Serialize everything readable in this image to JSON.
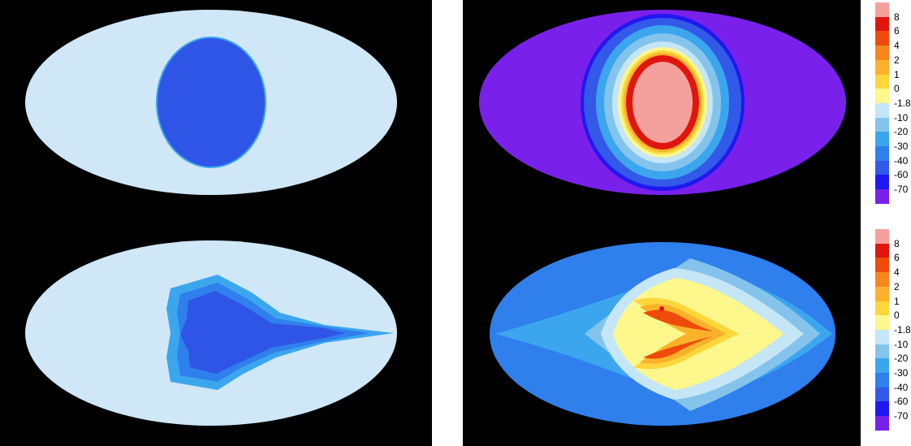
{
  "chart_data": {
    "type": "heatmap",
    "projection": "elliptical (Mollweide-like) sky maps",
    "panels": [
      {
        "position": "top-left",
        "levels_shown": [
          "-1.8",
          "-60"
        ],
        "shape": "oval core"
      },
      {
        "position": "bottom-left",
        "levels_shown": [
          "-1.8",
          "-20",
          "-30",
          "-40",
          "-60"
        ],
        "shape": "arrow-like core pointing right"
      },
      {
        "position": "top-right",
        "levels_shown": [
          "-70",
          "-60",
          "-40",
          "-30",
          "-20",
          "-10",
          "-1.8",
          "0",
          "2",
          "4",
          "6",
          "8"
        ],
        "shape": "concentric oval rings"
      },
      {
        "position": "bottom-right",
        "levels_shown": [
          "-60",
          "-40",
          "-30",
          "-20",
          "-10",
          "-1.8",
          "0",
          "1",
          "2",
          "4",
          "6"
        ],
        "shape": "heart-like core pointing right"
      }
    ],
    "colorbar": {
      "labels": [
        "8",
        "6",
        "4",
        "2",
        "1",
        "0",
        "-1.8",
        "-10",
        "-20",
        "-30",
        "-40",
        "-60",
        "-70"
      ],
      "colors": [
        "#f4a09c",
        "#e0160e",
        "#ee4b0a",
        "#f7861c",
        "#fbb22a",
        "#fdd63c",
        "#fef78c",
        "#c5e6f7",
        "#84c4ec",
        "#3ba6ee",
        "#2f7fed",
        "#3359e8",
        "#1f18f0",
        "#7921ea"
      ]
    },
    "legend_placement": "right",
    "grid": false
  }
}
